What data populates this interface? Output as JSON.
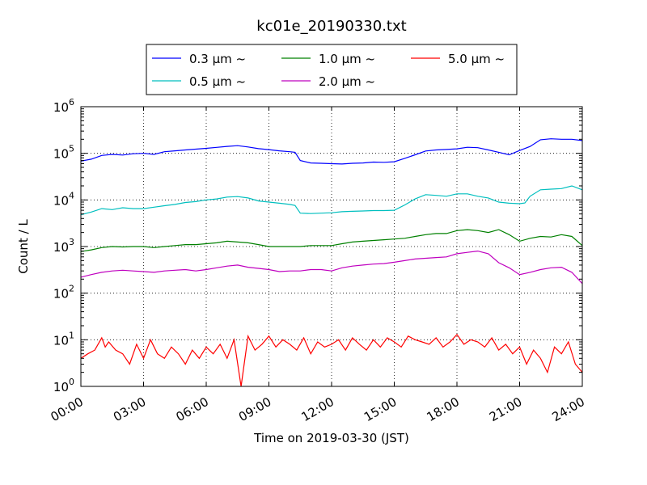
{
  "chart_data": {
    "type": "line",
    "title": "kc01e_20190330.txt",
    "xlabel": "Time on 2019-03-30 (JST)",
    "ylabel": "Count / L",
    "y_scale": "log",
    "ylim": [
      1,
      1000000
    ],
    "x_range": [
      "00:00",
      "24:00"
    ],
    "x_ticks": [
      "00:00",
      "03:00",
      "06:00",
      "09:00",
      "12:00",
      "15:00",
      "18:00",
      "21:00",
      "24:00"
    ],
    "y_ticks": [
      {
        "base": "10",
        "exp": "0"
      },
      {
        "base": "10",
        "exp": "1"
      },
      {
        "base": "10",
        "exp": "2"
      },
      {
        "base": "10",
        "exp": "3"
      },
      {
        "base": "10",
        "exp": "4"
      },
      {
        "base": "10",
        "exp": "5"
      },
      {
        "base": "10",
        "exp": "6"
      }
    ],
    "grid": true,
    "legend_position": "top-center",
    "series": [
      {
        "name": "0.3 μm ~",
        "color": "#0000ff",
        "x": [
          "00:00",
          "00:30",
          "01:00",
          "01:30",
          "02:00",
          "02:30",
          "03:00",
          "03:30",
          "04:00",
          "04:30",
          "05:00",
          "05:30",
          "06:00",
          "06:30",
          "07:00",
          "07:30",
          "08:00",
          "08:30",
          "09:00",
          "09:30",
          "10:00",
          "10:15",
          "10:30",
          "11:00",
          "11:30",
          "12:00",
          "12:30",
          "13:00",
          "13:30",
          "14:00",
          "14:30",
          "15:00",
          "15:30",
          "16:00",
          "16:30",
          "17:00",
          "17:30",
          "18:00",
          "18:30",
          "19:00",
          "19:30",
          "20:00",
          "20:30",
          "21:00",
          "21:30",
          "22:00",
          "22:30",
          "23:00",
          "23:30",
          "24:00"
        ],
        "y": [
          68000,
          75000,
          90000,
          95000,
          92000,
          98000,
          100000,
          95000,
          108000,
          113000,
          118000,
          123000,
          128000,
          134000,
          141000,
          146000,
          137000,
          126000,
          120000,
          113000,
          108000,
          105000,
          70000,
          62000,
          61000,
          60000,
          59000,
          61000,
          62000,
          65000,
          64000,
          66000,
          78000,
          93000,
          112000,
          118000,
          121000,
          125000,
          135000,
          132000,
          118000,
          105000,
          93000,
          115000,
          140000,
          195000,
          205000,
          200000,
          200000,
          188000
        ]
      },
      {
        "name": "0.5 μm ~",
        "color": "#00bfbf",
        "x": [
          "00:00",
          "00:30",
          "01:00",
          "01:30",
          "02:00",
          "02:30",
          "03:00",
          "03:30",
          "04:00",
          "04:30",
          "05:00",
          "05:30",
          "06:00",
          "06:30",
          "07:00",
          "07:30",
          "08:00",
          "08:30",
          "09:00",
          "09:30",
          "10:00",
          "10:15",
          "10:30",
          "11:00",
          "11:30",
          "12:00",
          "12:30",
          "13:00",
          "13:30",
          "14:00",
          "14:30",
          "15:00",
          "15:30",
          "16:00",
          "16:30",
          "17:00",
          "17:30",
          "18:00",
          "18:30",
          "19:00",
          "19:30",
          "20:00",
          "20:30",
          "21:00",
          "21:15",
          "21:30",
          "22:00",
          "22:30",
          "23:00",
          "23:30",
          "24:00"
        ],
        "y": [
          4800,
          5500,
          6500,
          6200,
          6800,
          6500,
          6500,
          7000,
          7500,
          8000,
          8800,
          9200,
          10000,
          10500,
          11500,
          11800,
          11000,
          9500,
          9000,
          8500,
          8000,
          7600,
          5200,
          5100,
          5200,
          5300,
          5600,
          5700,
          5800,
          5900,
          5900,
          6000,
          7800,
          10500,
          13000,
          12500,
          12000,
          13500,
          13500,
          12000,
          11000,
          9000,
          8500,
          8300,
          8600,
          12000,
          16500,
          17000,
          17500,
          20000,
          16500
        ]
      },
      {
        "name": "1.0 μm ~",
        "color": "#008000",
        "x": [
          "00:00",
          "00:30",
          "01:00",
          "01:30",
          "02:00",
          "02:30",
          "03:00",
          "03:30",
          "04:00",
          "04:30",
          "05:00",
          "05:30",
          "06:00",
          "06:30",
          "07:00",
          "07:30",
          "08:00",
          "08:30",
          "09:00",
          "09:30",
          "10:00",
          "10:30",
          "11:00",
          "11:30",
          "12:00",
          "12:30",
          "13:00",
          "13:30",
          "14:00",
          "14:30",
          "15:00",
          "15:30",
          "16:00",
          "16:30",
          "17:00",
          "17:30",
          "18:00",
          "18:30",
          "19:00",
          "19:30",
          "20:00",
          "20:30",
          "21:00",
          "21:30",
          "22:00",
          "22:30",
          "23:00",
          "23:30",
          "24:00"
        ],
        "y": [
          780,
          850,
          950,
          1000,
          980,
          1000,
          1000,
          950,
          1000,
          1050,
          1100,
          1100,
          1150,
          1200,
          1300,
          1250,
          1200,
          1100,
          1000,
          1000,
          1000,
          1000,
          1050,
          1050,
          1050,
          1150,
          1250,
          1300,
          1350,
          1400,
          1450,
          1500,
          1650,
          1800,
          1900,
          1900,
          2200,
          2300,
          2200,
          2000,
          2300,
          1800,
          1300,
          1500,
          1650,
          1600,
          1800,
          1650,
          1050
        ]
      },
      {
        "name": "2.0 μm ~",
        "color": "#bf00bf",
        "x": [
          "00:00",
          "00:30",
          "01:00",
          "01:30",
          "02:00",
          "02:30",
          "03:00",
          "03:30",
          "04:00",
          "04:30",
          "05:00",
          "05:30",
          "06:00",
          "06:30",
          "07:00",
          "07:30",
          "08:00",
          "08:30",
          "09:00",
          "09:30",
          "10:00",
          "10:30",
          "11:00",
          "11:30",
          "12:00",
          "12:30",
          "13:00",
          "13:30",
          "14:00",
          "14:30",
          "15:00",
          "15:30",
          "16:00",
          "16:30",
          "17:00",
          "17:30",
          "18:00",
          "18:30",
          "19:00",
          "19:30",
          "20:00",
          "20:30",
          "21:00",
          "21:30",
          "22:00",
          "22:30",
          "23:00",
          "23:30",
          "24:00"
        ],
        "y": [
          220,
          250,
          280,
          300,
          310,
          300,
          290,
          280,
          300,
          310,
          320,
          300,
          320,
          350,
          380,
          400,
          360,
          340,
          320,
          290,
          300,
          300,
          320,
          320,
          300,
          350,
          380,
          400,
          420,
          430,
          460,
          500,
          540,
          560,
          580,
          600,
          700,
          750,
          800,
          700,
          450,
          350,
          250,
          280,
          320,
          350,
          360,
          280,
          160
        ]
      },
      {
        "name": "5.0 μm ~",
        "color": "#ff0000",
        "x": [
          "00:00",
          "00:20",
          "00:40",
          "01:00",
          "01:10",
          "01:20",
          "01:40",
          "02:00",
          "02:20",
          "02:40",
          "03:00",
          "03:20",
          "03:40",
          "04:00",
          "04:20",
          "04:40",
          "05:00",
          "05:20",
          "05:40",
          "06:00",
          "06:20",
          "06:40",
          "07:00",
          "07:20",
          "07:40",
          "08:00",
          "08:20",
          "08:40",
          "09:00",
          "09:20",
          "09:40",
          "10:00",
          "10:20",
          "10:40",
          "11:00",
          "11:20",
          "11:40",
          "12:00",
          "12:20",
          "12:40",
          "13:00",
          "13:20",
          "13:40",
          "14:00",
          "14:20",
          "14:40",
          "15:00",
          "15:20",
          "15:40",
          "16:00",
          "16:20",
          "16:40",
          "17:00",
          "17:20",
          "17:40",
          "18:00",
          "18:20",
          "18:40",
          "19:00",
          "19:20",
          "19:40",
          "20:00",
          "20:20",
          "20:40",
          "21:00",
          "21:20",
          "21:40",
          "22:00",
          "22:20",
          "22:40",
          "23:00",
          "23:20",
          "23:40",
          "24:00"
        ],
        "y": [
          4,
          5,
          6,
          11,
          7,
          9,
          6,
          5,
          3,
          8,
          4,
          10,
          5,
          4,
          7,
          5,
          3,
          6,
          4,
          7,
          5,
          8,
          4,
          10,
          1,
          12,
          6,
          8,
          12,
          7,
          10,
          8,
          6,
          11,
          5,
          9,
          7,
          8,
          10,
          6,
          11,
          8,
          6,
          10,
          7,
          11,
          9,
          7,
          12,
          10,
          9,
          8,
          11,
          7,
          9,
          13,
          8,
          10,
          9,
          7,
          11,
          6,
          8,
          5,
          7,
          3,
          6,
          4,
          2,
          7,
          5,
          9,
          3,
          2
        ]
      }
    ]
  }
}
